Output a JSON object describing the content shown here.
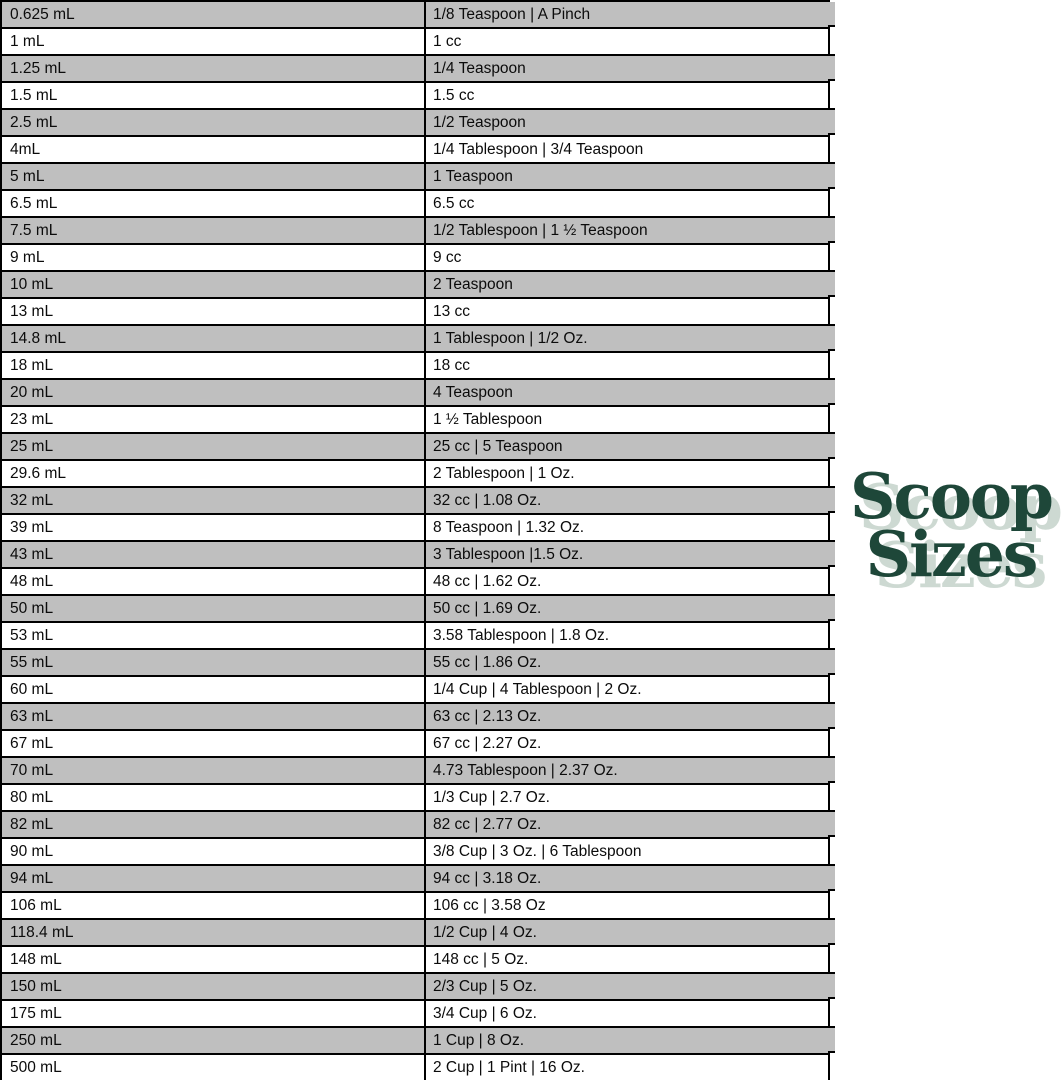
{
  "table": {
    "column_semantics": [
      "milliliters",
      "conversion"
    ],
    "rows": [
      {
        "ml": "0.625 mL",
        "conversion": "1/8 Teaspoon | A Pinch",
        "shaded": true
      },
      {
        "ml": "1 mL",
        "conversion": "1 cc",
        "shaded": false
      },
      {
        "ml": "1.25 mL",
        "conversion": "1/4 Teaspoon",
        "shaded": true
      },
      {
        "ml": "1.5 mL",
        "conversion": "1.5 cc",
        "shaded": false
      },
      {
        "ml": "2.5 mL",
        "conversion": "1/2 Teaspoon",
        "shaded": true
      },
      {
        "ml": "4mL",
        "conversion": "1/4 Tablespoon | 3/4 Teaspoon",
        "shaded": false
      },
      {
        "ml": "5 mL",
        "conversion": "1 Teaspoon",
        "shaded": true
      },
      {
        "ml": "6.5 mL",
        "conversion": "6.5 cc",
        "shaded": false
      },
      {
        "ml": "7.5 mL",
        "conversion": "1/2 Tablespoon | 1 ½ Teaspoon",
        "shaded": true
      },
      {
        "ml": "9 mL",
        "conversion": "9 cc",
        "shaded": false
      },
      {
        "ml": "10 mL",
        "conversion": "2 Teaspoon",
        "shaded": true
      },
      {
        "ml": "13 mL",
        "conversion": "13 cc",
        "shaded": false
      },
      {
        "ml": "14.8 mL",
        "conversion": "1 Tablespoon | 1/2 Oz.",
        "shaded": true
      },
      {
        "ml": "18 mL",
        "conversion": "18 cc",
        "shaded": false
      },
      {
        "ml": "20 mL",
        "conversion": "4 Teaspoon",
        "shaded": true
      },
      {
        "ml": "23 mL",
        "conversion": "1 ½ Tablespoon",
        "shaded": false
      },
      {
        "ml": "25 mL",
        "conversion": "25 cc | 5 Teaspoon",
        "shaded": true
      },
      {
        "ml": "29.6 mL",
        "conversion": "2 Tablespoon | 1 Oz.",
        "shaded": false
      },
      {
        "ml": "32 mL",
        "conversion": "32 cc | 1.08 Oz.",
        "shaded": true
      },
      {
        "ml": "39 mL",
        "conversion": "8 Teaspoon | 1.32 Oz.",
        "shaded": false
      },
      {
        "ml": "43 mL",
        "conversion": "3 Tablespoon |1.5 Oz.",
        "shaded": true
      },
      {
        "ml": "48 mL",
        "conversion": "48 cc | 1.62 Oz.",
        "shaded": false
      },
      {
        "ml": "50 mL",
        "conversion": "50 cc | 1.69 Oz.",
        "shaded": true
      },
      {
        "ml": "53 mL",
        "conversion": "3.58 Tablespoon | 1.8 Oz.",
        "shaded": false
      },
      {
        "ml": "55 mL",
        "conversion": "55 cc | 1.86 Oz.",
        "shaded": true
      },
      {
        "ml": "60 mL",
        "conversion": "1/4 Cup | 4 Tablespoon | 2 Oz.",
        "shaded": false
      },
      {
        "ml": "63 mL",
        "conversion": "63 cc | 2.13 Oz.",
        "shaded": true
      },
      {
        "ml": "67 mL",
        "conversion": "67 cc | 2.27 Oz.",
        "shaded": false
      },
      {
        "ml": "70 mL",
        "conversion": "4.73 Tablespoon | 2.37 Oz.",
        "shaded": true
      },
      {
        "ml": "80 mL",
        "conversion": "1/3 Cup | 2.7 Oz.",
        "shaded": false
      },
      {
        "ml": "82 mL",
        "conversion": "82 cc | 2.77 Oz.",
        "shaded": true
      },
      {
        "ml": "90 mL",
        "conversion": "3/8 Cup | 3 Oz. | 6 Tablespoon",
        "shaded": false
      },
      {
        "ml": "94 mL",
        "conversion": "94 cc | 3.18 Oz.",
        "shaded": true
      },
      {
        "ml": "106 mL",
        "conversion": "106 cc | 3.58 Oz",
        "shaded": false
      },
      {
        "ml": "118.4 mL",
        "conversion": "1/2 Cup | 4 Oz.",
        "shaded": true
      },
      {
        "ml": "148 mL",
        "conversion": "148 cc | 5 Oz.",
        "shaded": false
      },
      {
        "ml": "150 mL",
        "conversion": "2/3 Cup | 5 Oz.",
        "shaded": true
      },
      {
        "ml": "175 mL",
        "conversion": "3/4 Cup | 6 Oz.",
        "shaded": false
      },
      {
        "ml": "250 mL",
        "conversion": "1 Cup | 8 Oz.",
        "shaded": true
      },
      {
        "ml": "500 mL",
        "conversion": "2 Cup | 1 Pint | 16 Oz.",
        "shaded": false
      }
    ]
  },
  "logo": {
    "line1": "Scoop",
    "line2": "Sizes",
    "text_color": "#1e4739",
    "shadow_color": "#cdd9d2"
  },
  "colors": {
    "row_shaded": "#bfbfbf",
    "row_plain": "#ffffff",
    "border": "#000000"
  }
}
